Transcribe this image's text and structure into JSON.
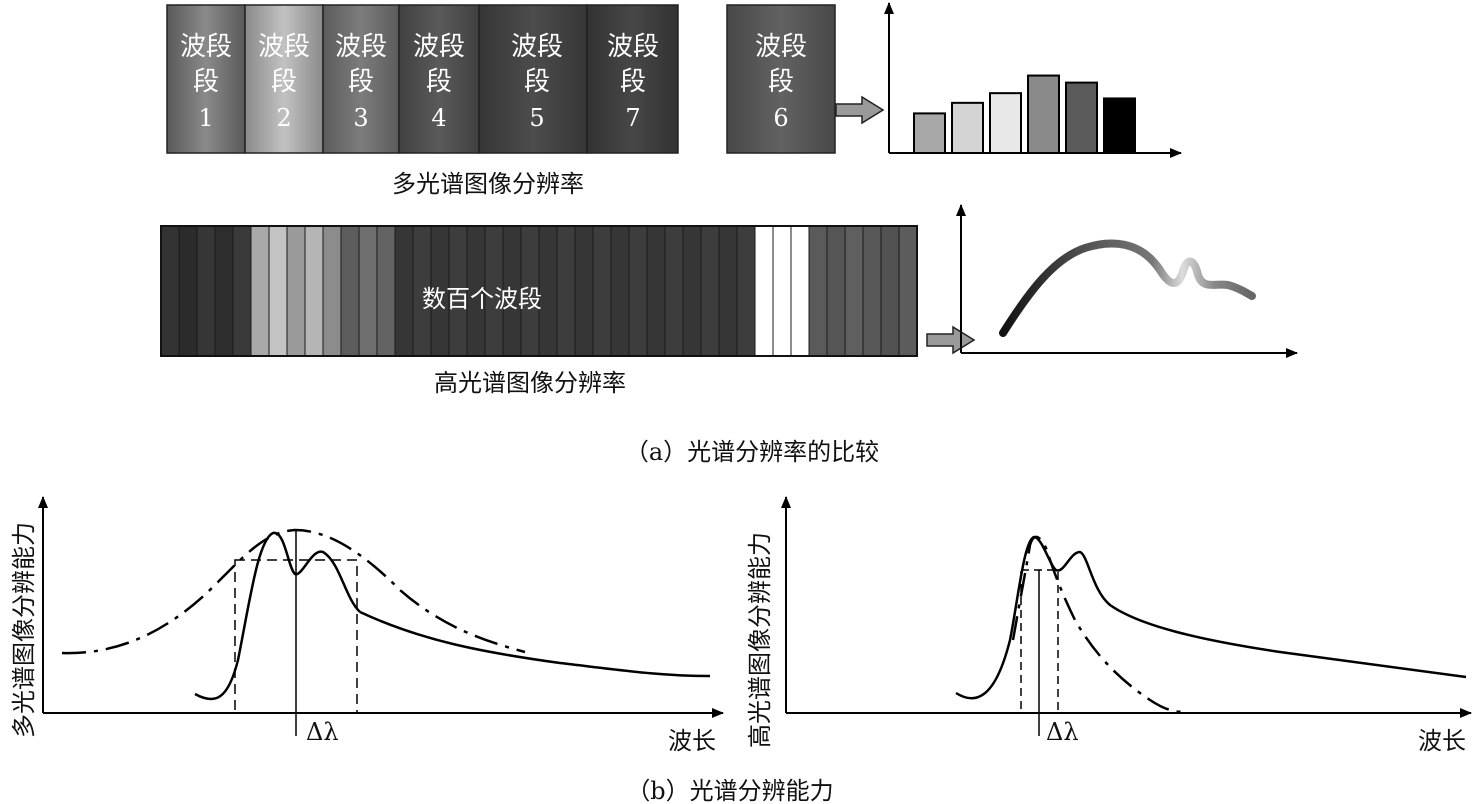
{
  "part_a": {
    "multispectral_bands": [
      {
        "label": "波段",
        "num": "1",
        "color": "#6b6b6b"
      },
      {
        "label": "波段",
        "num": "2",
        "color": "#9a9a9a"
      },
      {
        "label": "波段",
        "num": "3",
        "color": "#666666"
      },
      {
        "label": "波段",
        "num": "4",
        "color": "#4a4a4a"
      },
      {
        "label": "波段",
        "num": "5",
        "color": "#414141"
      },
      {
        "label": "波段",
        "num": "7",
        "color": "#3c3c3c"
      }
    ],
    "separate_band": {
      "label": "波段",
      "num": "6",
      "color": "#555555"
    },
    "multispectral_caption": "多光谱图像分辨率",
    "bar_chart_fills": [
      "#a8a8a8",
      "#d4d4d4",
      "#e8e8e8",
      "#8a8a8a",
      "#5a5a5a",
      "#000000"
    ],
    "bar_chart_levels": [
      0.45,
      0.57,
      0.68,
      0.88,
      0.8,
      0.62
    ],
    "hyperspectral_center_text": "数百个波段",
    "hyperspectral_caption": "高光谱图像分辨率",
    "caption": "（a）光谱分辨率的比较"
  },
  "part_b": {
    "left_ylabel": "多光谱图像分辨能力",
    "right_ylabel": "高光谱图像分辨能力",
    "xlabel": "波长",
    "delta_label": "Δλ",
    "caption": "（b）光谱分辨能力"
  }
}
